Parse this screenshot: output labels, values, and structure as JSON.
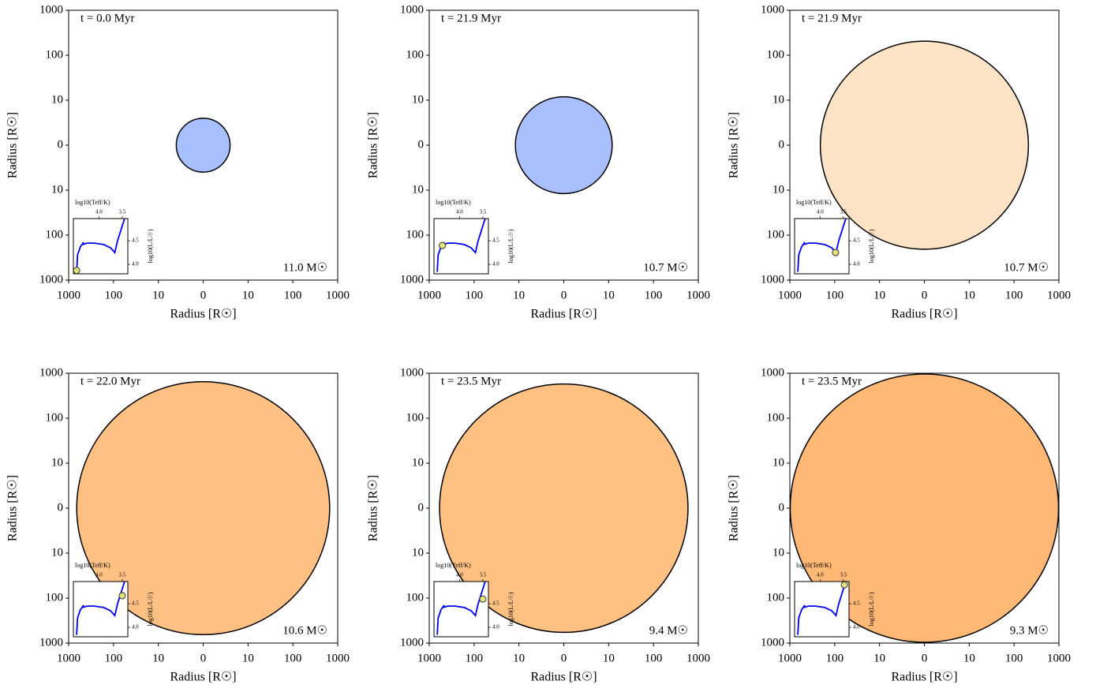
{
  "chart_data": [
    {
      "type": "star",
      "time_label": "t = 0.0 Myr",
      "mass_label": "11.0 M☉",
      "radius": 6,
      "color": "#a9c0fe",
      "xlabel": "Radius [R☉]",
      "ylabel": "Radius [R☉]",
      "scale": "symlog",
      "linthresh": 10,
      "xlim": [
        -1000,
        1000
      ],
      "ylim": [
        -1000,
        1000
      ],
      "xticks": [
        {
          "value": -1000,
          "label": "1000"
        },
        {
          "value": -100,
          "label": "100"
        },
        {
          "value": -10,
          "label": "10"
        },
        0,
        10,
        100,
        1000
      ],
      "yticks": [
        {
          "value": -1000,
          "label": "1000"
        },
        {
          "value": -100,
          "label": "100"
        },
        {
          "value": -10,
          "label": "10"
        },
        0,
        10,
        100,
        1000
      ],
      "inset": {
        "type": "line",
        "xlabel": "log10(Teff/K)",
        "ylabel": "log10(L/L☉)",
        "xlim": [
          4.55,
          3.38
        ],
        "ylim": [
          3.8,
          4.97
        ],
        "xticks": [
          {
            "value": 4,
            "label": "4.0"
          },
          3.5
        ],
        "yticks": [
          {
            "value": 4,
            "label": "4.0"
          },
          4.5
        ],
        "x": [
          4.48,
          4.46,
          4.4,
          4.33,
          4.36,
          4.25,
          4.1,
          3.9,
          3.75,
          3.66,
          3.6,
          3.52,
          3.45
        ],
        "values": [
          3.84,
          4.2,
          4.37,
          4.47,
          4.42,
          4.45,
          4.45,
          4.42,
          4.35,
          4.25,
          4.5,
          4.75,
          4.97
        ],
        "color": "#0000ee",
        "marker": {
          "x": 4.48,
          "y": 3.87
        },
        "marker_color": "#e6e27a"
      }
    },
    {
      "type": "star",
      "time_label": "t = 21.9 Myr",
      "mass_label": "10.7 M☉",
      "radius": 12,
      "color": "#aac0fe",
      "xlabel": "Radius [R☉]",
      "ylabel": "Radius [R☉]",
      "scale": "symlog",
      "linthresh": 10,
      "xlim": [
        -1000,
        1000
      ],
      "ylim": [
        -1000,
        1000
      ],
      "xticks": [
        {
          "value": -1000,
          "label": "1000"
        },
        {
          "value": -100,
          "label": "100"
        },
        {
          "value": -10,
          "label": "10"
        },
        0,
        10,
        100,
        1000
      ],
      "yticks": [
        {
          "value": -1000,
          "label": "1000"
        },
        {
          "value": -100,
          "label": "100"
        },
        {
          "value": -10,
          "label": "10"
        },
        0,
        10,
        100,
        1000
      ],
      "inset": {
        "type": "line",
        "xlabel": "log10(Teff/K)",
        "ylabel": "log10(L/L☉)",
        "xlim": [
          4.55,
          3.38
        ],
        "ylim": [
          3.8,
          4.97
        ],
        "xticks": [
          {
            "value": 4,
            "label": "4.0"
          },
          3.5
        ],
        "yticks": [
          {
            "value": 4,
            "label": "4.0"
          },
          4.5
        ],
        "x": [
          4.48,
          4.46,
          4.4,
          4.33,
          4.36,
          4.25,
          4.1,
          3.9,
          3.75,
          3.66,
          3.6,
          3.52,
          3.45
        ],
        "values": [
          3.84,
          4.2,
          4.37,
          4.47,
          4.42,
          4.45,
          4.45,
          4.42,
          4.35,
          4.25,
          4.5,
          4.75,
          4.97
        ],
        "color": "#0000ee",
        "marker": {
          "x": 4.37,
          "y": 4.4
        },
        "marker_color": "#e6e27a"
      }
    },
    {
      "type": "star",
      "time_label": "t = 21.9 Myr",
      "mass_label": "10.7 M☉",
      "radius": 209,
      "color": "#fde3c6",
      "xlabel": "Radius [R☉]",
      "ylabel": "Radius [R☉]",
      "scale": "symlog",
      "linthresh": 10,
      "xlim": [
        -1000,
        1000
      ],
      "ylim": [
        -1000,
        1000
      ],
      "xticks": [
        {
          "value": -1000,
          "label": "1000"
        },
        {
          "value": -100,
          "label": "100"
        },
        {
          "value": -10,
          "label": "10"
        },
        0,
        10,
        100,
        1000
      ],
      "yticks": [
        {
          "value": -1000,
          "label": "1000"
        },
        {
          "value": -100,
          "label": "100"
        },
        {
          "value": -10,
          "label": "10"
        },
        0,
        10,
        100,
        1000
      ],
      "inset": {
        "type": "line",
        "xlabel": "log10(Teff/K)",
        "ylabel": "log10(L/L☉)",
        "xlim": [
          4.55,
          3.38
        ],
        "ylim": [
          3.8,
          4.97
        ],
        "xticks": [
          {
            "value": 4,
            "label": "4.0"
          },
          3.5
        ],
        "yticks": [
          {
            "value": 4,
            "label": "4.0"
          },
          4.5
        ],
        "x": [
          4.48,
          4.46,
          4.4,
          4.33,
          4.36,
          4.25,
          4.1,
          3.9,
          3.75,
          3.66,
          3.6,
          3.52,
          3.45
        ],
        "values": [
          3.84,
          4.2,
          4.37,
          4.47,
          4.42,
          4.45,
          4.45,
          4.42,
          4.35,
          4.25,
          4.5,
          4.75,
          4.97
        ],
        "color": "#0000ee",
        "marker": {
          "x": 3.67,
          "y": 4.25
        },
        "marker_color": "#e6e27a"
      }
    },
    {
      "type": "star",
      "time_label": "t = 22.0 Myr",
      "mass_label": "10.6 M☉",
      "radius": 661,
      "color": "#ffc183",
      "xlabel": "Radius [R☉]",
      "ylabel": "Radius [R☉]",
      "scale": "symlog",
      "linthresh": 10,
      "xlim": [
        -1000,
        1000
      ],
      "ylim": [
        -1000,
        1000
      ],
      "xticks": [
        {
          "value": -1000,
          "label": "1000"
        },
        {
          "value": -100,
          "label": "100"
        },
        {
          "value": -10,
          "label": "10"
        },
        0,
        10,
        100,
        1000
      ],
      "yticks": [
        {
          "value": -1000,
          "label": "1000"
        },
        {
          "value": -100,
          "label": "100"
        },
        {
          "value": -10,
          "label": "10"
        },
        0,
        10,
        100,
        1000
      ],
      "inset": {
        "type": "line",
        "xlabel": "log10(Teff/K)",
        "ylabel": "log10(L/L☉)",
        "xlim": [
          4.55,
          3.38
        ],
        "ylim": [
          3.8,
          4.97
        ],
        "xticks": [
          {
            "value": 4,
            "label": "4.0"
          },
          3.5
        ],
        "yticks": [
          {
            "value": 4,
            "label": "4.0"
          },
          4.5
        ],
        "x": [
          4.48,
          4.46,
          4.4,
          4.33,
          4.36,
          4.25,
          4.1,
          3.9,
          3.75,
          3.66,
          3.6,
          3.52,
          3.45
        ],
        "values": [
          3.84,
          4.2,
          4.37,
          4.47,
          4.42,
          4.45,
          4.45,
          4.42,
          4.35,
          4.25,
          4.5,
          4.75,
          4.97
        ],
        "color": "#0000ee",
        "marker": {
          "x": 3.5,
          "y": 4.67
        },
        "marker_color": "#e6e27a"
      }
    },
    {
      "type": "star",
      "time_label": "t = 23.5 Myr",
      "mass_label": "9.4 M☉",
      "radius": 589,
      "color": "#ffc182",
      "xlabel": "Radius [R☉]",
      "ylabel": "Radius [R☉]",
      "scale": "symlog",
      "linthresh": 10,
      "xlim": [
        -1000,
        1000
      ],
      "ylim": [
        -1000,
        1000
      ],
      "xticks": [
        {
          "value": -1000,
          "label": "1000"
        },
        {
          "value": -100,
          "label": "100"
        },
        {
          "value": -10,
          "label": "10"
        },
        0,
        10,
        100,
        1000
      ],
      "yticks": [
        {
          "value": -1000,
          "label": "1000"
        },
        {
          "value": -100,
          "label": "100"
        },
        {
          "value": -10,
          "label": "10"
        },
        0,
        10,
        100,
        1000
      ],
      "inset": {
        "type": "line",
        "xlabel": "log10(Teff/K)",
        "ylabel": "log10(L/L☉)",
        "xlim": [
          4.55,
          3.38
        ],
        "ylim": [
          3.8,
          4.97
        ],
        "xticks": [
          {
            "value": 4,
            "label": "4.0"
          },
          3.5
        ],
        "yticks": [
          {
            "value": 4,
            "label": "4.0"
          },
          4.5
        ],
        "x": [
          4.48,
          4.46,
          4.4,
          4.33,
          4.36,
          4.25,
          4.1,
          3.9,
          3.75,
          3.66,
          3.6,
          3.52,
          3.45
        ],
        "values": [
          3.84,
          4.2,
          4.37,
          4.47,
          4.42,
          4.45,
          4.45,
          4.42,
          4.35,
          4.25,
          4.5,
          4.75,
          4.97
        ],
        "color": "#0000ee",
        "marker": {
          "x": 3.5,
          "y": 4.6
        },
        "marker_color": "#e6e27a"
      }
    },
    {
      "type": "star",
      "time_label": "t = 23.5 Myr",
      "mass_label": "9.3 M☉",
      "radius": 980,
      "color": "#ffb875",
      "xlabel": "Radius [R☉]",
      "ylabel": "Radius [R☉]",
      "scale": "symlog",
      "linthresh": 10,
      "xlim": [
        -1000,
        1000
      ],
      "ylim": [
        -1000,
        1000
      ],
      "xticks": [
        {
          "value": -1000,
          "label": "1000"
        },
        {
          "value": -100,
          "label": "100"
        },
        {
          "value": -10,
          "label": "10"
        },
        0,
        10,
        100,
        1000
      ],
      "yticks": [
        {
          "value": -1000,
          "label": "1000"
        },
        {
          "value": -100,
          "label": "100"
        },
        {
          "value": -10,
          "label": "10"
        },
        0,
        10,
        100,
        1000
      ],
      "inset": {
        "type": "line",
        "xlabel": "log10(Teff/K)",
        "ylabel": "log10(L/L☉)",
        "xlim": [
          4.55,
          3.38
        ],
        "ylim": [
          3.8,
          4.97
        ],
        "xticks": [
          {
            "value": 4,
            "label": "4.0"
          },
          3.5
        ],
        "yticks": [
          {
            "value": 4,
            "label": "4.0"
          },
          4.5
        ],
        "x": [
          4.48,
          4.46,
          4.4,
          4.33,
          4.36,
          4.25,
          4.1,
          3.9,
          3.75,
          3.66,
          3.6,
          3.52,
          3.45
        ],
        "values": [
          3.84,
          4.2,
          4.37,
          4.47,
          4.42,
          4.45,
          4.45,
          4.42,
          4.35,
          4.25,
          4.5,
          4.75,
          4.97
        ],
        "color": "#0000ee",
        "marker": {
          "x": 3.48,
          "y": 4.9
        },
        "marker_color": "#e6e27a"
      }
    }
  ]
}
